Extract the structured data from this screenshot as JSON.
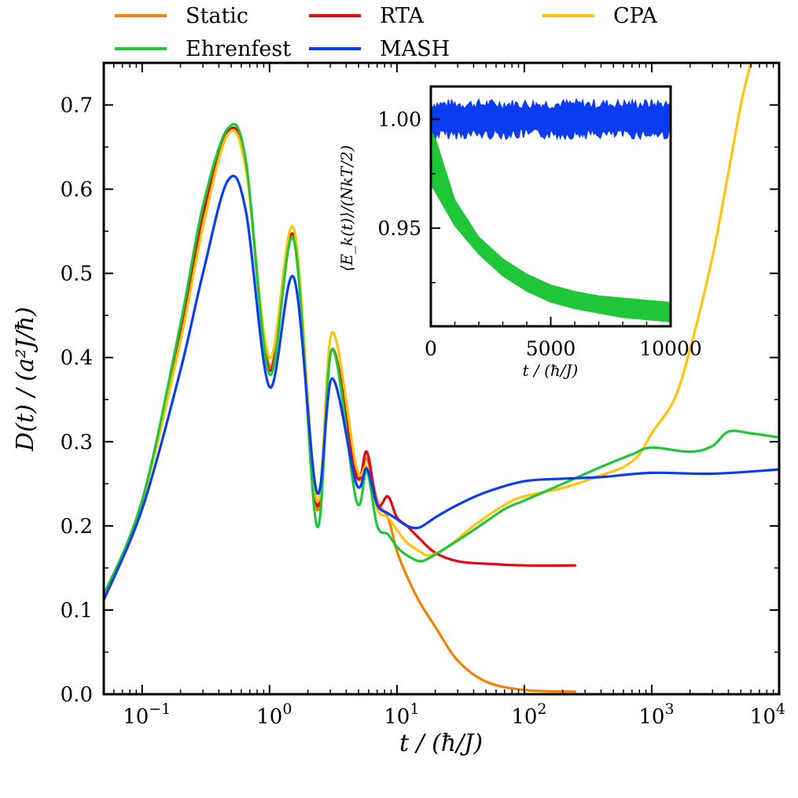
{
  "chart_data": [
    {
      "id": "main",
      "type": "line",
      "xscale": "log",
      "xlim": [
        0.05,
        10000
      ],
      "ylim": [
        0.0,
        0.75
      ],
      "xlabel": "t / (ħ/J)",
      "ylabel": "D(t) / (a²J/ħ)",
      "xticks": [
        {
          "value": 0.1,
          "base": "10",
          "exp": "−1"
        },
        {
          "value": 1,
          "base": "10",
          "exp": "0"
        },
        {
          "value": 10,
          "base": "10",
          "exp": "1"
        },
        {
          "value": 100,
          "base": "10",
          "exp": "2"
        },
        {
          "value": 1000,
          "base": "10",
          "exp": "3"
        },
        {
          "value": 10000,
          "base": "10",
          "exp": "4"
        }
      ],
      "yticks": [
        {
          "value": 0.0,
          "label": "0.0"
        },
        {
          "value": 0.1,
          "label": "0.1"
        },
        {
          "value": 0.2,
          "label": "0.2"
        },
        {
          "value": 0.3,
          "label": "0.3"
        },
        {
          "value": 0.4,
          "label": "0.4"
        },
        {
          "value": 0.5,
          "label": "0.5"
        },
        {
          "value": 0.6,
          "label": "0.6"
        },
        {
          "value": 0.7,
          "label": "0.7"
        }
      ],
      "legend": {
        "placement": "top",
        "columns": 3
      },
      "series": [
        {
          "name": "Static",
          "color": "#f77f00",
          "x": [
            0.05,
            0.1,
            0.2,
            0.3,
            0.47,
            0.65,
            1.0,
            1.55,
            2.35,
            3.1,
            4.8,
            5.8,
            7.0,
            8.5,
            10,
            12,
            15,
            20,
            30,
            50,
            100,
            250
          ],
          "y": [
            0.115,
            0.23,
            0.43,
            0.57,
            0.668,
            0.63,
            0.39,
            0.54,
            0.22,
            0.41,
            0.26,
            0.28,
            0.23,
            0.21,
            0.17,
            0.14,
            0.11,
            0.08,
            0.04,
            0.015,
            0.005,
            0.003
          ]
        },
        {
          "name": "RTA",
          "color": "#e30613",
          "x": [
            0.05,
            0.1,
            0.2,
            0.3,
            0.47,
            0.65,
            1.0,
            1.55,
            2.35,
            3.1,
            4.8,
            5.8,
            7.0,
            8.5,
            10,
            12,
            15,
            20,
            30,
            50,
            100,
            250
          ],
          "y": [
            0.115,
            0.23,
            0.43,
            0.57,
            0.668,
            0.63,
            0.385,
            0.545,
            0.225,
            0.41,
            0.26,
            0.288,
            0.225,
            0.235,
            0.21,
            0.2,
            0.185,
            0.168,
            0.158,
            0.155,
            0.153,
            0.153
          ]
        },
        {
          "name": "CPA",
          "color": "#ffc30b",
          "x": [
            0.05,
            0.1,
            0.2,
            0.3,
            0.47,
            0.65,
            1.0,
            1.55,
            2.35,
            3.1,
            4.8,
            5.8,
            7.0,
            8.5,
            10,
            12,
            15,
            18,
            25,
            40,
            70,
            100,
            200,
            400,
            600,
            800,
            1000,
            1500,
            2000,
            3000,
            4000,
            5000,
            6000
          ],
          "y": [
            0.115,
            0.228,
            0.42,
            0.555,
            0.665,
            0.625,
            0.4,
            0.553,
            0.23,
            0.43,
            0.27,
            0.27,
            0.22,
            0.21,
            0.195,
            0.18,
            0.17,
            0.165,
            0.175,
            0.2,
            0.225,
            0.235,
            0.245,
            0.26,
            0.27,
            0.285,
            0.31,
            0.35,
            0.41,
            0.52,
            0.62,
            0.7,
            0.75
          ]
        },
        {
          "name": "Ehrenfest",
          "color": "#1fc738",
          "x": [
            0.05,
            0.1,
            0.2,
            0.3,
            0.47,
            0.65,
            1.0,
            1.55,
            2.35,
            3.1,
            4.8,
            5.8,
            7.0,
            8.5,
            10,
            12,
            15,
            18,
            25,
            40,
            70,
            100,
            200,
            400,
            700,
            1000,
            2000,
            3000,
            4000,
            6000,
            10000
          ],
          "y": [
            0.118,
            0.23,
            0.44,
            0.58,
            0.672,
            0.635,
            0.38,
            0.54,
            0.2,
            0.41,
            0.23,
            0.265,
            0.2,
            0.19,
            0.175,
            0.165,
            0.158,
            0.162,
            0.175,
            0.195,
            0.22,
            0.23,
            0.25,
            0.27,
            0.285,
            0.293,
            0.288,
            0.295,
            0.312,
            0.31,
            0.305
          ]
        },
        {
          "name": "MASH",
          "color": "#0a3cf2",
          "x": [
            0.05,
            0.1,
            0.2,
            0.3,
            0.47,
            0.65,
            1.0,
            1.55,
            2.35,
            3.1,
            4.8,
            5.8,
            7.0,
            8.5,
            10,
            12,
            15,
            20,
            30,
            50,
            100,
            200,
            400,
            1000,
            3000,
            10000
          ],
          "y": [
            0.112,
            0.22,
            0.385,
            0.5,
            0.61,
            0.575,
            0.365,
            0.495,
            0.24,
            0.375,
            0.25,
            0.268,
            0.225,
            0.215,
            0.208,
            0.2,
            0.198,
            0.21,
            0.225,
            0.24,
            0.253,
            0.256,
            0.258,
            0.263,
            0.262,
            0.267
          ]
        }
      ]
    },
    {
      "id": "inset",
      "type": "line",
      "xlim": [
        0,
        10000
      ],
      "ylim": [
        0.905,
        1.015
      ],
      "xlabel": "t / (ħ/J)",
      "ylabel": "⟨E_k(t)⟩/(NkT/2)",
      "xticks": [
        {
          "value": 0,
          "label": "0"
        },
        {
          "value": 5000,
          "label": "5000"
        },
        {
          "value": 10000,
          "label": "10000"
        }
      ],
      "yticks": [
        {
          "value": 0.95,
          "label": "0.95"
        },
        {
          "value": 1.0,
          "label": "1.00"
        }
      ],
      "series": [
        {
          "name": "MASH",
          "color": "#0a3cf2",
          "x": [
            0,
            1000,
            2000,
            3000,
            4000,
            5000,
            6000,
            7000,
            8000,
            9000,
            10000
          ],
          "y": [
            1.0,
            1.0,
            1.0,
            1.0,
            1.0,
            1.0,
            1.0,
            1.0,
            1.0,
            1.0,
            1.0
          ],
          "band": 0.008
        },
        {
          "name": "Ehrenfest",
          "color": "#1fc738",
          "x": [
            0,
            1000,
            2000,
            3000,
            4000,
            5000,
            6000,
            7000,
            8000,
            9000,
            10000
          ],
          "y_upper": [
            0.998,
            0.963,
            0.946,
            0.936,
            0.929,
            0.924,
            0.921,
            0.919,
            0.918,
            0.917,
            0.916
          ],
          "y_lower": [
            0.97,
            0.951,
            0.938,
            0.928,
            0.921,
            0.916,
            0.913,
            0.911,
            0.909,
            0.908,
            0.907
          ]
        }
      ]
    }
  ]
}
